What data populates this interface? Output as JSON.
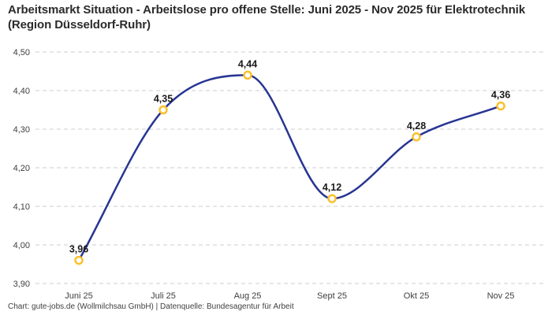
{
  "title": "Arbeitsmarkt Situation - Arbeitslose pro offene Stelle: Juni 2025 - Nov 2025 für Elektrotechnik (Region Düsseldorf-Ruhr)",
  "footer": "Chart: gute-jobs.de (Wollmilchsau GmbH) | Datenquelle: Bundesagentur für Arbeit",
  "chart_data": {
    "type": "line",
    "title": "Arbeitsmarkt Situation - Arbeitslose pro offene Stelle: Juni 2025 - Nov 2025 für Elektrotechnik (Region Düsseldorf-Ruhr)",
    "categories": [
      "Juni 25",
      "Juli 25",
      "Aug 25",
      "Sept 25",
      "Okt 25",
      "Nov 25"
    ],
    "values": [
      3.96,
      4.35,
      4.44,
      4.12,
      4.28,
      4.36
    ],
    "value_labels": [
      "3,96",
      "4,35",
      "4,44",
      "4,12",
      "4,28",
      "4,36"
    ],
    "xlabel": "",
    "ylabel": "",
    "ylim": [
      3.9,
      4.5
    ],
    "y_ticks": [
      3.9,
      4.0,
      4.1,
      4.2,
      4.3,
      4.4,
      4.5
    ],
    "y_tick_labels": [
      "3,90",
      "4,00",
      "4,10",
      "4,20",
      "4,30",
      "4,40",
      "4,50"
    ],
    "grid": "horizontal-dashed",
    "legend": "none",
    "interpolation": "monotone-smooth",
    "colors": {
      "line": "#283593",
      "marker_ring": "#fbc02d",
      "marker_fill": "#ffffff",
      "grid": "#cccccc",
      "title_text": "#2b2b2b",
      "axis_text": "#404040",
      "value_text": "#1a1a1a",
      "footer_text": "#404040",
      "background": "#ffffff"
    }
  }
}
